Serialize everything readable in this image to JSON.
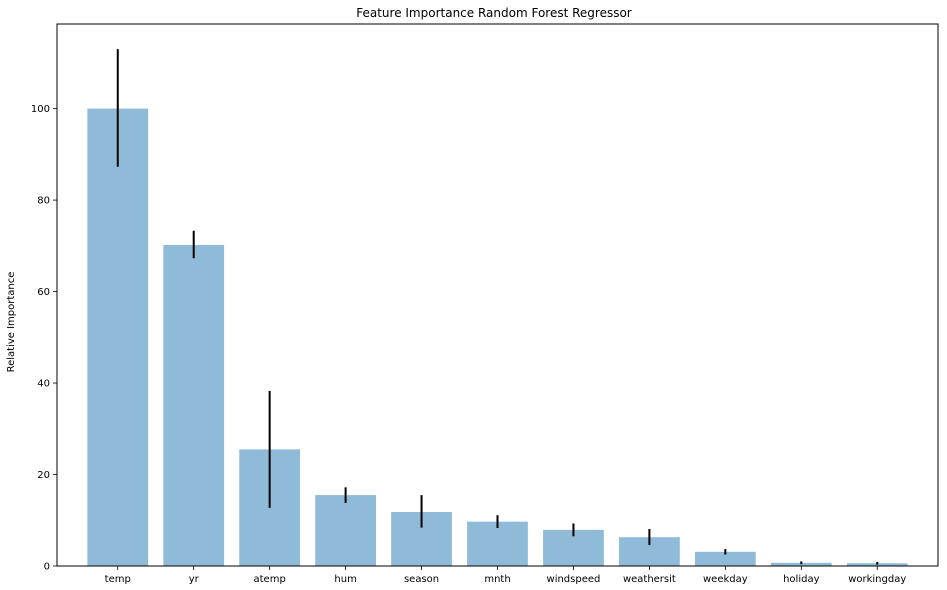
{
  "chart_data": {
    "type": "bar",
    "title": "Feature Importance Random Forest Regressor",
    "xlabel": "",
    "ylabel": "Relative Importance",
    "categories": [
      "temp",
      "yr",
      "atemp",
      "hum",
      "season",
      "mnth",
      "windspeed",
      "weathersit",
      "weekday",
      "holiday",
      "workingday"
    ],
    "values": [
      100.0,
      70.2,
      25.5,
      15.5,
      11.8,
      9.7,
      7.9,
      6.3,
      3.1,
      0.7,
      0.6
    ],
    "error_bars": [
      [
        87.3,
        113.0
      ],
      [
        67.3,
        73.3
      ],
      [
        12.7,
        38.3
      ],
      [
        13.8,
        17.2
      ],
      [
        8.4,
        15.5
      ],
      [
        8.3,
        11.1
      ],
      [
        6.5,
        9.3
      ],
      [
        4.6,
        8.1
      ],
      [
        2.5,
        3.7
      ],
      [
        0.4,
        1.0
      ],
      [
        0.3,
        0.9
      ]
    ],
    "ylim": [
      0,
      118.5
    ],
    "yticks": [
      0,
      20,
      40,
      60,
      80,
      100
    ],
    "grid": false,
    "legend": "none",
    "colors": {
      "bar": "#1f77b4",
      "bar_opacity": 0.5,
      "error_bar": "#000000",
      "axis": "#000000"
    }
  }
}
